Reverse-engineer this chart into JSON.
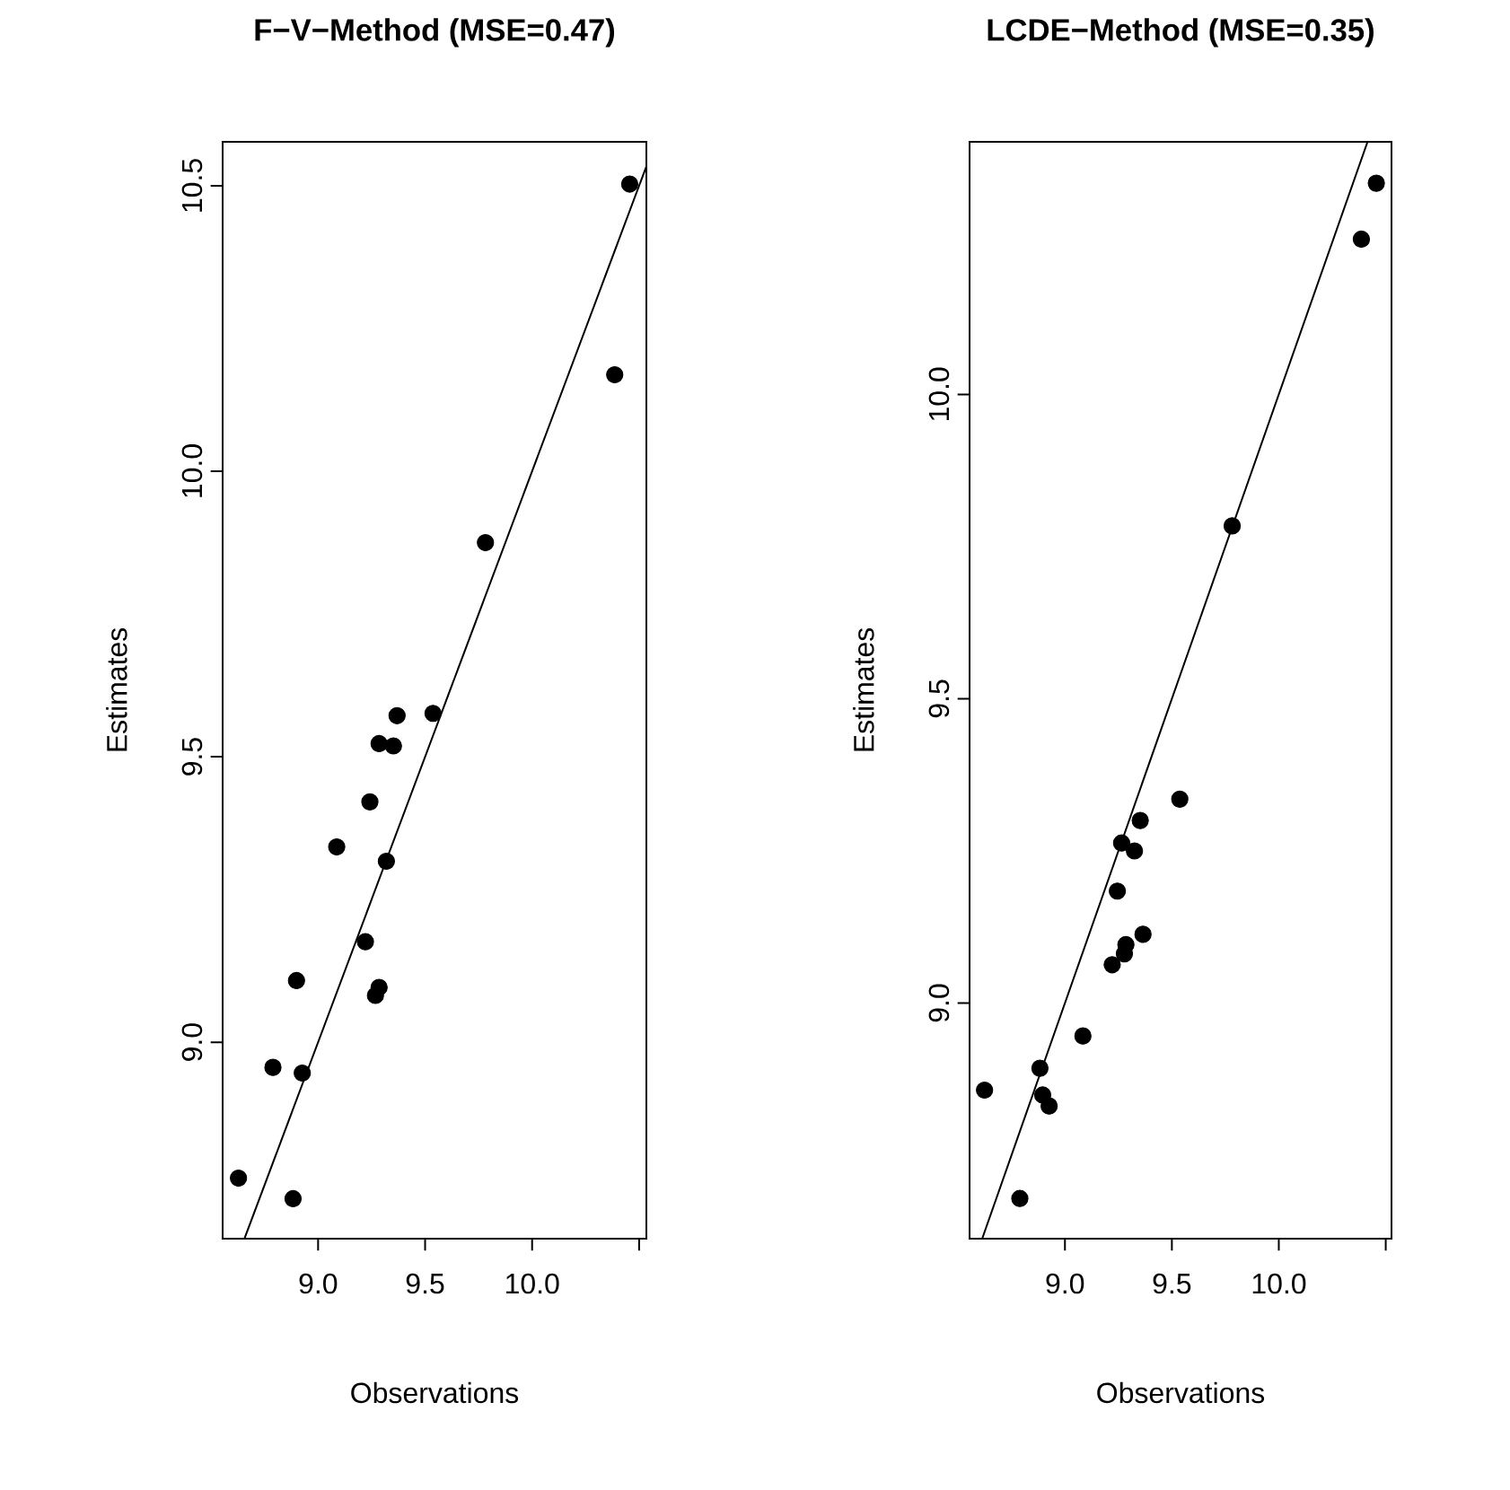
{
  "chart_data": [
    {
      "type": "scatter",
      "title": "F−V−Method  (MSE=0.47)",
      "xlabel": "Observations",
      "ylabel": "Estimates",
      "xlim": [
        8.554,
        10.534
      ],
      "ylim": [
        8.656,
        10.577
      ],
      "xticks": [
        {
          "value": 9,
          "label": "9.0"
        },
        {
          "value": 9.5,
          "label": "9.5"
        },
        {
          "value": 10,
          "label": "10.0"
        },
        {
          "value": 10.5,
          "label": null
        }
      ],
      "yticks": [
        {
          "value": 9,
          "label": "9.0"
        },
        {
          "value": 9.5,
          "label": "9.5"
        },
        {
          "value": 10,
          "label": "10.0"
        },
        {
          "value": 10.5,
          "label": "10.5"
        }
      ],
      "series": [
        {
          "color": "#000000",
          "marker": "circle",
          "x": [
            10.456,
            10.386,
            9.782,
            9.537,
            9.369,
            9.285,
            9.352,
            9.242,
            9.087,
            9.319,
            9.221,
            8.899,
            9.285,
            9.268,
            8.789,
            8.926,
            8.628,
            8.883
          ],
          "values": [
            10.503,
            10.169,
            9.875,
            9.576,
            9.572,
            9.523,
            9.519,
            9.421,
            9.342,
            9.317,
            9.176,
            9.108,
            9.096,
            9.082,
            8.956,
            8.946,
            8.762,
            8.726
          ]
        },
        {
          "type": "line",
          "color": "#000000",
          "marker": "none",
          "line_style": "solid",
          "x": [
            8.656,
            10.534
          ],
          "values": [
            8.656,
            10.534
          ]
        }
      ]
    },
    {
      "type": "scatter",
      "title": "LCDE−Method  (MSE=0.35)",
      "xlabel": "Observations",
      "ylabel": "Estimates",
      "xlim": [
        8.554,
        10.527
      ],
      "ylim": [
        8.613,
        10.415
      ],
      "xticks": [
        {
          "value": 9,
          "label": "9.0"
        },
        {
          "value": 9.5,
          "label": "9.5"
        },
        {
          "value": 10,
          "label": "10.0"
        },
        {
          "value": 10.5,
          "label": null
        }
      ],
      "yticks": [
        {
          "value": 9,
          "label": "9.0"
        },
        {
          "value": 9.5,
          "label": "9.5"
        },
        {
          "value": 10,
          "label": "10.0"
        }
      ],
      "series": [
        {
          "color": "#000000",
          "marker": "circle",
          "x": [
            10.456,
            10.386,
            9.782,
            9.537,
            9.352,
            9.265,
            9.325,
            9.245,
            9.365,
            9.285,
            9.278,
            9.221,
            9.084,
            8.883,
            8.624,
            8.896,
            8.926,
            8.789
          ],
          "values": [
            10.347,
            10.255,
            9.784,
            9.335,
            9.3,
            9.263,
            9.25,
            9.184,
            9.113,
            9.096,
            9.081,
            9.063,
            8.946,
            8.893,
            8.857,
            8.849,
            8.831,
            8.679
          ]
        },
        {
          "type": "line",
          "color": "#000000",
          "marker": "none",
          "line_style": "solid",
          "x": [
            8.613,
            10.415
          ],
          "values": [
            8.613,
            10.415
          ]
        }
      ]
    }
  ]
}
